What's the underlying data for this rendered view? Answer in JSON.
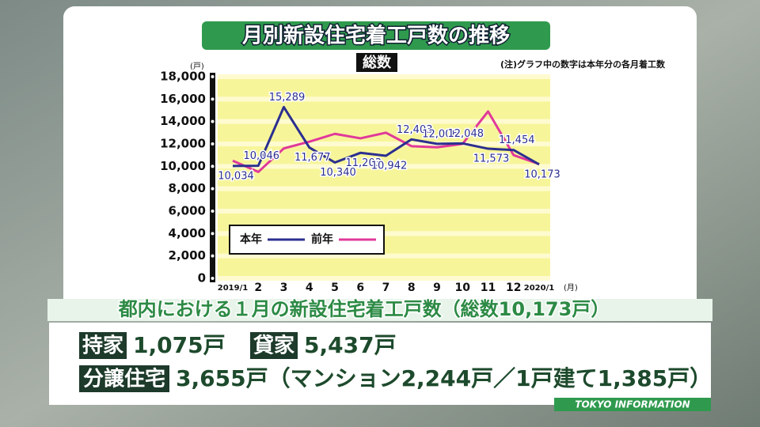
{
  "chart_data": {
    "type": "line",
    "title": "月別新設住宅着工戸数の推移",
    "subtitle": "総数",
    "note": "(注)グラフ中の数字は本年分の各月着工数",
    "y_unit": "(戸)",
    "x_unit": "(月)",
    "categories": [
      "2019/1",
      "2",
      "3",
      "4",
      "5",
      "6",
      "7",
      "8",
      "9",
      "10",
      "11",
      "12",
      "2020/1"
    ],
    "series": [
      {
        "name": "本年",
        "color": "#2b2f8f",
        "values": [
          10034,
          10046,
          15289,
          11677,
          10340,
          11203,
          10942,
          12403,
          12006,
          12048,
          11573,
          11454,
          10173
        ],
        "value_labels": [
          "10,034",
          "10,046",
          "15,289",
          "11,677",
          "10,340",
          "11,203",
          "10,942",
          "12,403",
          "12,006",
          "12,048",
          "11,573",
          "11,454",
          "10,173"
        ]
      },
      {
        "name": "前年",
        "color": "#e0399a",
        "values": [
          10500,
          9500,
          11600,
          12200,
          12900,
          12500,
          13000,
          11800,
          11700,
          12000,
          14900,
          11000,
          10200
        ]
      }
    ],
    "ylim": [
      0,
      18000
    ],
    "yticks": [
      0,
      {
        "value": 2000,
        "label": "2,000"
      },
      {
        "value": 4000,
        "label": "4,000"
      },
      {
        "value": 6000,
        "label": "6,000"
      },
      {
        "value": 8000,
        "label": "8,000"
      },
      {
        "value": 10000,
        "label": "10,000"
      },
      {
        "value": 12000,
        "label": "12,000"
      },
      {
        "value": 14000,
        "label": "14,000"
      },
      {
        "value": 16000,
        "label": "16,000"
      },
      {
        "value": 18000,
        "label": "18,000"
      }
    ],
    "grid": true
  },
  "overlay": {
    "caption": "都内における１月の新設住宅着工戸数（総数10,173戸）",
    "row1": {
      "label1": "持家",
      "value1": "1,075戸",
      "label2": "貸家",
      "value2": "5,437戸"
    },
    "row2": {
      "label": "分譲住宅",
      "value": "3,655戸（マンション2,244戸／1戸建て1,385戸）"
    },
    "brand": "TOKYO INFORMATION"
  }
}
